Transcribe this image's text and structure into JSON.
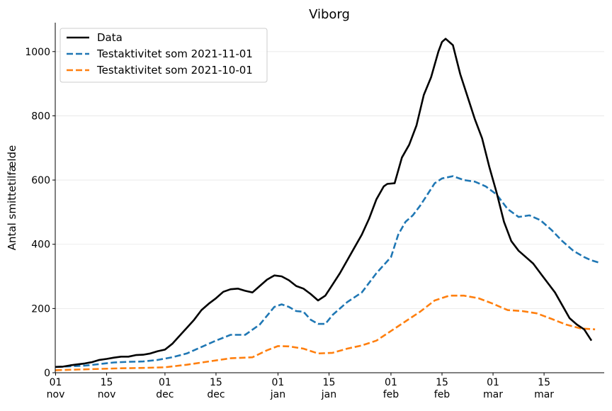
{
  "chart_data": {
    "type": "line",
    "title": "Viborg",
    "xlabel": "",
    "ylabel": "Antal smittetilfælde",
    "ylim": [
      0,
      1090
    ],
    "y_ticks": [
      0,
      200,
      400,
      600,
      800,
      1000
    ],
    "grid": "horizontal",
    "legend_position": "top-left",
    "x_ticks": [
      {
        "date": "2021-11-01",
        "day": "01",
        "month": "nov"
      },
      {
        "date": "2021-11-15",
        "day": "15",
        "month": "nov"
      },
      {
        "date": "2021-12-01",
        "day": "01",
        "month": "dec"
      },
      {
        "date": "2021-12-15",
        "day": "15",
        "month": "dec"
      },
      {
        "date": "2022-01-01",
        "day": "01",
        "month": "jan"
      },
      {
        "date": "2022-01-15",
        "day": "15",
        "month": "jan"
      },
      {
        "date": "2022-02-01",
        "day": "01",
        "month": "feb"
      },
      {
        "date": "2022-02-15",
        "day": "15",
        "month": "feb"
      },
      {
        "date": "2022-03-01",
        "day": "01",
        "month": "mar"
      },
      {
        "date": "2022-03-15",
        "day": "15",
        "month": "mar"
      }
    ],
    "series": [
      {
        "name": "Data",
        "color": "#000000",
        "dash": "solid",
        "points": [
          [
            "2021-11-01",
            18
          ],
          [
            "2021-11-03",
            19
          ],
          [
            "2021-11-05",
            23
          ],
          [
            "2021-11-07",
            26
          ],
          [
            "2021-11-09",
            29
          ],
          [
            "2021-11-11",
            33
          ],
          [
            "2021-11-13",
            40
          ],
          [
            "2021-11-15",
            43
          ],
          [
            "2021-11-17",
            47
          ],
          [
            "2021-11-19",
            50
          ],
          [
            "2021-11-21",
            50
          ],
          [
            "2021-11-23",
            55
          ],
          [
            "2021-11-25",
            56
          ],
          [
            "2021-11-27",
            60
          ],
          [
            "2021-11-29",
            67
          ],
          [
            "2021-12-01",
            72
          ],
          [
            "2021-12-03",
            90
          ],
          [
            "2021-12-05",
            115
          ],
          [
            "2021-12-07",
            140
          ],
          [
            "2021-12-09",
            165
          ],
          [
            "2021-12-11",
            195
          ],
          [
            "2021-12-13",
            215
          ],
          [
            "2021-12-15",
            232
          ],
          [
            "2021-12-17",
            252
          ],
          [
            "2021-12-19",
            260
          ],
          [
            "2021-12-21",
            262
          ],
          [
            "2021-12-23",
            255
          ],
          [
            "2021-12-25",
            250
          ],
          [
            "2021-12-27",
            270
          ],
          [
            "2021-12-29",
            290
          ],
          [
            "2021-12-31",
            303
          ],
          [
            "2022-01-02",
            300
          ],
          [
            "2022-01-04",
            288
          ],
          [
            "2022-01-06",
            270
          ],
          [
            "2022-01-08",
            262
          ],
          [
            "2022-01-10",
            245
          ],
          [
            "2022-01-12",
            225
          ],
          [
            "2022-01-14",
            240
          ],
          [
            "2022-01-16",
            275
          ],
          [
            "2022-01-18",
            310
          ],
          [
            "2022-01-20",
            350
          ],
          [
            "2022-01-22",
            390
          ],
          [
            "2022-01-24",
            430
          ],
          [
            "2022-01-26",
            480
          ],
          [
            "2022-01-28",
            540
          ],
          [
            "2022-01-30",
            580
          ],
          [
            "2022-01-31",
            588
          ],
          [
            "2022-02-02",
            590
          ],
          [
            "2022-02-04",
            670
          ],
          [
            "2022-02-06",
            710
          ],
          [
            "2022-02-08",
            770
          ],
          [
            "2022-02-10",
            865
          ],
          [
            "2022-02-12",
            920
          ],
          [
            "2022-02-14",
            1000
          ],
          [
            "2022-02-15",
            1030
          ],
          [
            "2022-02-16",
            1040
          ],
          [
            "2022-02-18",
            1020
          ],
          [
            "2022-02-20",
            930
          ],
          [
            "2022-02-22",
            860
          ],
          [
            "2022-02-24",
            790
          ],
          [
            "2022-02-26",
            730
          ],
          [
            "2022-02-28",
            640
          ],
          [
            "2022-03-02",
            560
          ],
          [
            "2022-03-04",
            470
          ],
          [
            "2022-03-06",
            410
          ],
          [
            "2022-03-08",
            380
          ],
          [
            "2022-03-10",
            360
          ],
          [
            "2022-03-12",
            340
          ],
          [
            "2022-03-14",
            310
          ],
          [
            "2022-03-16",
            280
          ],
          [
            "2022-03-18",
            250
          ],
          [
            "2022-03-20",
            210
          ],
          [
            "2022-03-22",
            170
          ],
          [
            "2022-03-24",
            150
          ],
          [
            "2022-03-26",
            135
          ],
          [
            "2022-03-28",
            100
          ]
        ]
      },
      {
        "name": "Testaktivitet som 2021-11-01",
        "color": "#1f77b4",
        "dash": "dashed",
        "points": [
          [
            "2021-11-01",
            18
          ],
          [
            "2021-11-05",
            20
          ],
          [
            "2021-11-09",
            22
          ],
          [
            "2021-11-13",
            27
          ],
          [
            "2021-11-17",
            32
          ],
          [
            "2021-11-21",
            34
          ],
          [
            "2021-11-25",
            35
          ],
          [
            "2021-11-29",
            40
          ],
          [
            "2021-12-03",
            48
          ],
          [
            "2021-12-07",
            60
          ],
          [
            "2021-12-11",
            80
          ],
          [
            "2021-12-15",
            100
          ],
          [
            "2021-12-19",
            118
          ],
          [
            "2021-12-23",
            118
          ],
          [
            "2021-12-27",
            150
          ],
          [
            "2021-12-31",
            205
          ],
          [
            "2022-01-02",
            213
          ],
          [
            "2022-01-04",
            205
          ],
          [
            "2022-01-06",
            192
          ],
          [
            "2022-01-08",
            190
          ],
          [
            "2022-01-10",
            165
          ],
          [
            "2022-01-12",
            152
          ],
          [
            "2022-01-14",
            152
          ],
          [
            "2022-01-16",
            180
          ],
          [
            "2022-01-20",
            220
          ],
          [
            "2022-01-24",
            250
          ],
          [
            "2022-01-28",
            310
          ],
          [
            "2022-02-01",
            360
          ],
          [
            "2022-02-03",
            430
          ],
          [
            "2022-02-05",
            470
          ],
          [
            "2022-02-07",
            490
          ],
          [
            "2022-02-09",
            520
          ],
          [
            "2022-02-11",
            555
          ],
          [
            "2022-02-13",
            590
          ],
          [
            "2022-02-15",
            605
          ],
          [
            "2022-02-18",
            612
          ],
          [
            "2022-02-21",
            600
          ],
          [
            "2022-02-24",
            595
          ],
          [
            "2022-02-27",
            580
          ],
          [
            "2022-03-02",
            555
          ],
          [
            "2022-03-05",
            510
          ],
          [
            "2022-03-08",
            485
          ],
          [
            "2022-03-11",
            490
          ],
          [
            "2022-03-14",
            475
          ],
          [
            "2022-03-17",
            445
          ],
          [
            "2022-03-20",
            410
          ],
          [
            "2022-03-23",
            380
          ],
          [
            "2022-03-26",
            360
          ],
          [
            "2022-03-28",
            350
          ],
          [
            "2022-03-30",
            343
          ]
        ]
      },
      {
        "name": "Testaktivitet som 2021-10-01",
        "color": "#ff7f0e",
        "dash": "dashed",
        "points": [
          [
            "2021-11-01",
            8
          ],
          [
            "2021-11-07",
            10
          ],
          [
            "2021-11-13",
            12
          ],
          [
            "2021-11-19",
            14
          ],
          [
            "2021-11-25",
            15
          ],
          [
            "2021-12-01",
            17
          ],
          [
            "2021-12-07",
            25
          ],
          [
            "2021-12-13",
            35
          ],
          [
            "2021-12-19",
            45
          ],
          [
            "2021-12-25",
            48
          ],
          [
            "2021-12-29",
            70
          ],
          [
            "2022-01-01",
            83
          ],
          [
            "2022-01-04",
            82
          ],
          [
            "2022-01-08",
            75
          ],
          [
            "2022-01-12",
            60
          ],
          [
            "2022-01-16",
            62
          ],
          [
            "2022-01-20",
            75
          ],
          [
            "2022-01-24",
            85
          ],
          [
            "2022-01-28",
            100
          ],
          [
            "2022-02-01",
            130
          ],
          [
            "2022-02-05",
            160
          ],
          [
            "2022-02-09",
            190
          ],
          [
            "2022-02-13",
            225
          ],
          [
            "2022-02-17",
            240
          ],
          [
            "2022-02-21",
            240
          ],
          [
            "2022-02-25",
            232
          ],
          [
            "2022-03-01",
            215
          ],
          [
            "2022-03-05",
            195
          ],
          [
            "2022-03-09",
            192
          ],
          [
            "2022-03-13",
            185
          ],
          [
            "2022-03-17",
            168
          ],
          [
            "2022-03-21",
            150
          ],
          [
            "2022-03-25",
            138
          ],
          [
            "2022-03-29",
            135
          ]
        ]
      }
    ]
  }
}
